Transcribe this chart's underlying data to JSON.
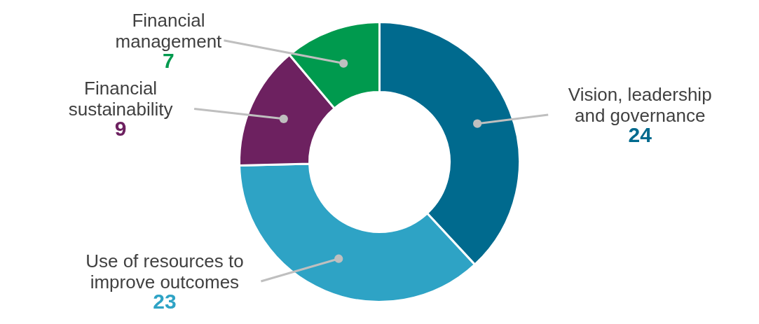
{
  "chart_data": {
    "type": "donut",
    "categories": [
      "Vision, leadership and governance",
      "Use of resources to improve outcomes",
      "Financial sustainability",
      "Financial management"
    ],
    "values": [
      24,
      23,
      9,
      7
    ],
    "colors": [
      "#006a8e",
      "#2ea3c5",
      "#6d2160",
      "#009a4e"
    ],
    "data_labels": true
  }
}
